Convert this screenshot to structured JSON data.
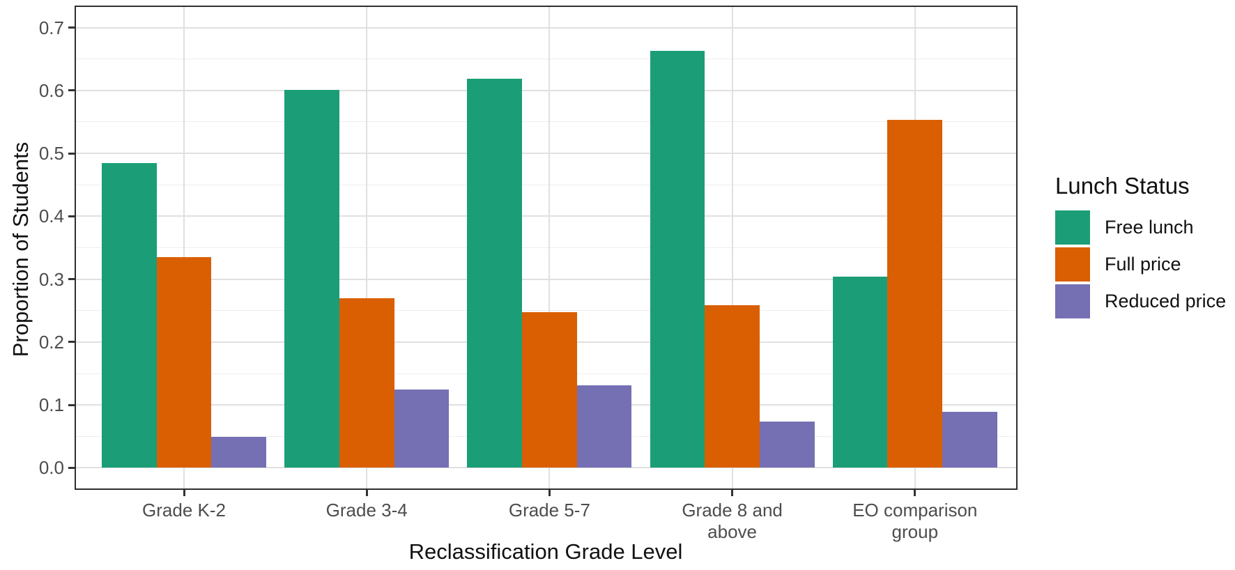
{
  "chart_data": {
    "type": "bar",
    "title": "",
    "xlabel": "Reclassification Grade Level",
    "ylabel": "Proportion of Students",
    "categories": [
      "Grade K-2",
      "Grade 3-4",
      "Grade 5-7",
      "Grade 8 and\nabove",
      "EO comparison\ngroup"
    ],
    "series": [
      {
        "name": "Free lunch",
        "color": "#1B9E77",
        "values": [
          0.485,
          0.601,
          0.619,
          0.663,
          0.304
        ]
      },
      {
        "name": "Full price",
        "color": "#D95F02",
        "values": [
          0.335,
          0.27,
          0.247,
          0.259,
          0.553
        ]
      },
      {
        "name": "Reduced price",
        "color": "#7570B3",
        "values": [
          0.049,
          0.124,
          0.131,
          0.074,
          0.089
        ]
      }
    ],
    "ylim": [
      -0.035,
      0.735
    ],
    "yticks": [
      0.0,
      0.1,
      0.2,
      0.3,
      0.4,
      0.5,
      0.6,
      0.7
    ],
    "ytick_labels": [
      "0.0",
      "0.1",
      "0.2",
      "0.3",
      "0.4",
      "0.5",
      "0.6",
      "0.7"
    ],
    "grid": "major and minor horizontal, vertical at category centers",
    "legend": {
      "title": "Lunch Status",
      "position": "right",
      "entries": [
        "Free lunch",
        "Full price",
        "Reduced price"
      ]
    },
    "panel_background": "#ffffff",
    "gridline_color": "#e0e0e0",
    "tick_label_color": "#4d4d4d"
  }
}
